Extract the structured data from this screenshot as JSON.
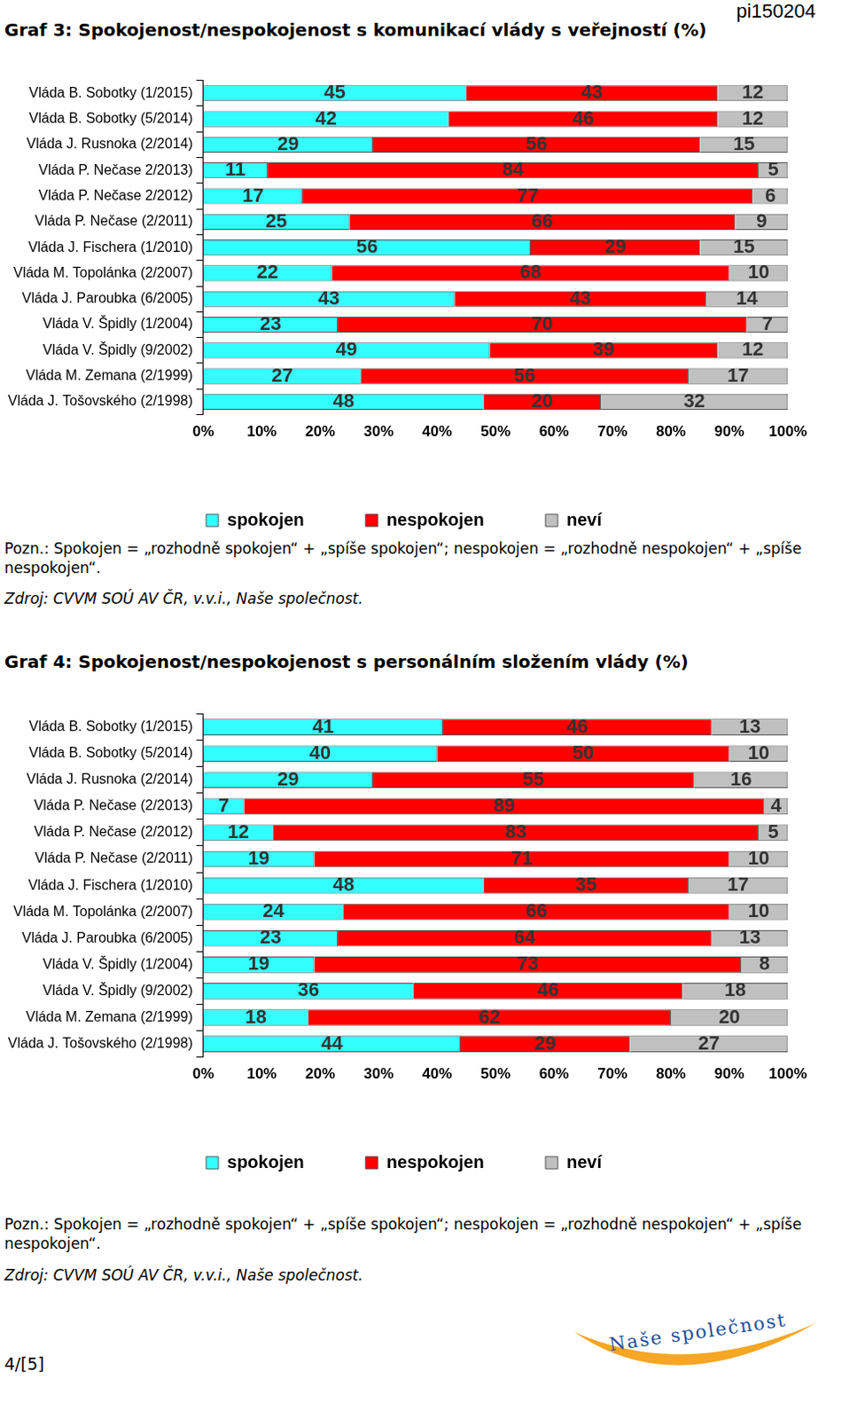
{
  "page": {
    "code": "pi150204",
    "page_number": "4/[5]",
    "logo": "Naše společnost"
  },
  "chart_data": [
    {
      "type": "bar",
      "title": "Graf 3: Spokojenost/nespokojenost s komunikací vlády s veřejností (%)",
      "orientation": "horizontal",
      "stacked": true,
      "data_labels": true,
      "grid": false,
      "legend": "bottom",
      "categories": [
        "Vláda B. Sobotky (1/2015)",
        "Vláda B. Sobotky (5/2014)",
        "Vláda J. Rusnoka (2/2014)",
        "Vláda P. Nečase 2/2013)",
        "Vláda P. Nečase 2/2012)",
        "Vláda P. Nečase (2/2011)",
        "Vláda J. Fischera (1/2010)",
        "Vláda M. Topolánka (2/2007)",
        "Vláda J. Paroubka (6/2005)",
        "Vláda V. Špidly (1/2004)",
        "Vláda V. Špidly (9/2002)",
        "Vláda M. Zemana (2/1999)",
        "Vláda J. Tošovského (2/1998)"
      ],
      "series": [
        {
          "name": "spokojen",
          "color": "#33ffff",
          "values": [
            45,
            42,
            29,
            11,
            17,
            25,
            56,
            22,
            43,
            23,
            49,
            27,
            48
          ]
        },
        {
          "name": "nespokojen",
          "color": "#ff0000",
          "values": [
            43,
            46,
            56,
            84,
            77,
            66,
            29,
            68,
            43,
            70,
            39,
            56,
            20
          ]
        },
        {
          "name": "neví",
          "color": "#c0c0c0",
          "values": [
            12,
            12,
            15,
            5,
            6,
            9,
            15,
            10,
            14,
            7,
            12,
            17,
            32
          ]
        }
      ],
      "xlim": [
        0,
        100
      ],
      "xticks": [
        {
          "value": 0,
          "label": "0%"
        },
        {
          "value": 10,
          "label": "10%"
        },
        {
          "value": 20,
          "label": "20%"
        },
        {
          "value": 30,
          "label": "30%"
        },
        {
          "value": 40,
          "label": "40%"
        },
        {
          "value": 50,
          "label": "50%"
        },
        {
          "value": 60,
          "label": "60%"
        },
        {
          "value": 70,
          "label": "70%"
        },
        {
          "value": 80,
          "label": "80%"
        },
        {
          "value": 90,
          "label": "90%"
        },
        {
          "value": 100,
          "label": "100%"
        }
      ],
      "note": "Pozn.: Spokojen = „rozhodně spokojen“ + „spíše spokojen“; nespokojen = „rozhodně nespokojen“ + „spíše nespokojen“.",
      "source": "Zdroj: CVVM SOÚ AV ČR, v.v.i., Naše společnost."
    },
    {
      "type": "bar",
      "title": "Graf 4: Spokojenost/nespokojenost s personálním složením vlády (%)",
      "orientation": "horizontal",
      "stacked": true,
      "data_labels": true,
      "grid": false,
      "legend": "bottom",
      "categories": [
        "Vláda B. Sobotky (1/2015)",
        "Vláda B. Sobotky (5/2014)",
        "Vláda J. Rusnoka (2/2014)",
        "Vláda P. Nečase (2/2013)",
        "Vláda P. Nečase (2/2012)",
        "Vláda P. Nečase (2/2011)",
        "Vláda J. Fischera (1/2010)",
        "Vláda M. Topolánka (2/2007)",
        "Vláda J. Paroubka (6/2005)",
        "Vláda V. Špidly (1/2004)",
        "Vláda V. Špidly (9/2002)",
        "Vláda M. Zemana (2/1999)",
        "Vláda J. Tošovského (2/1998)"
      ],
      "series": [
        {
          "name": "spokojen",
          "color": "#33ffff",
          "values": [
            41,
            40,
            29,
            7,
            12,
            19,
            48,
            24,
            23,
            19,
            36,
            18,
            44
          ]
        },
        {
          "name": "nespokojen",
          "color": "#ff0000",
          "values": [
            46,
            50,
            55,
            89,
            83,
            71,
            35,
            66,
            64,
            73,
            46,
            62,
            29
          ]
        },
        {
          "name": "neví",
          "color": "#c0c0c0",
          "values": [
            13,
            10,
            16,
            4,
            5,
            10,
            17,
            10,
            13,
            8,
            18,
            20,
            27
          ]
        }
      ],
      "xlim": [
        0,
        100
      ],
      "xticks": [
        {
          "value": 0,
          "label": "0%"
        },
        {
          "value": 10,
          "label": "10%"
        },
        {
          "value": 20,
          "label": "20%"
        },
        {
          "value": 30,
          "label": "30%"
        },
        {
          "value": 40,
          "label": "40%"
        },
        {
          "value": 50,
          "label": "50%"
        },
        {
          "value": 60,
          "label": "60%"
        },
        {
          "value": 70,
          "label": "70%"
        },
        {
          "value": 80,
          "label": "80%"
        },
        {
          "value": 90,
          "label": "90%"
        },
        {
          "value": 100,
          "label": "100%"
        }
      ],
      "note": "Pozn.: Spokojen = „rozhodně spokojen“ + „spíše spokojen“; nespokojen = „rozhodně nespokojen“ + „spíše nespokojen“.",
      "source": "Zdroj: CVVM SOÚ AV ČR, v.v.i., Naše společnost."
    }
  ]
}
